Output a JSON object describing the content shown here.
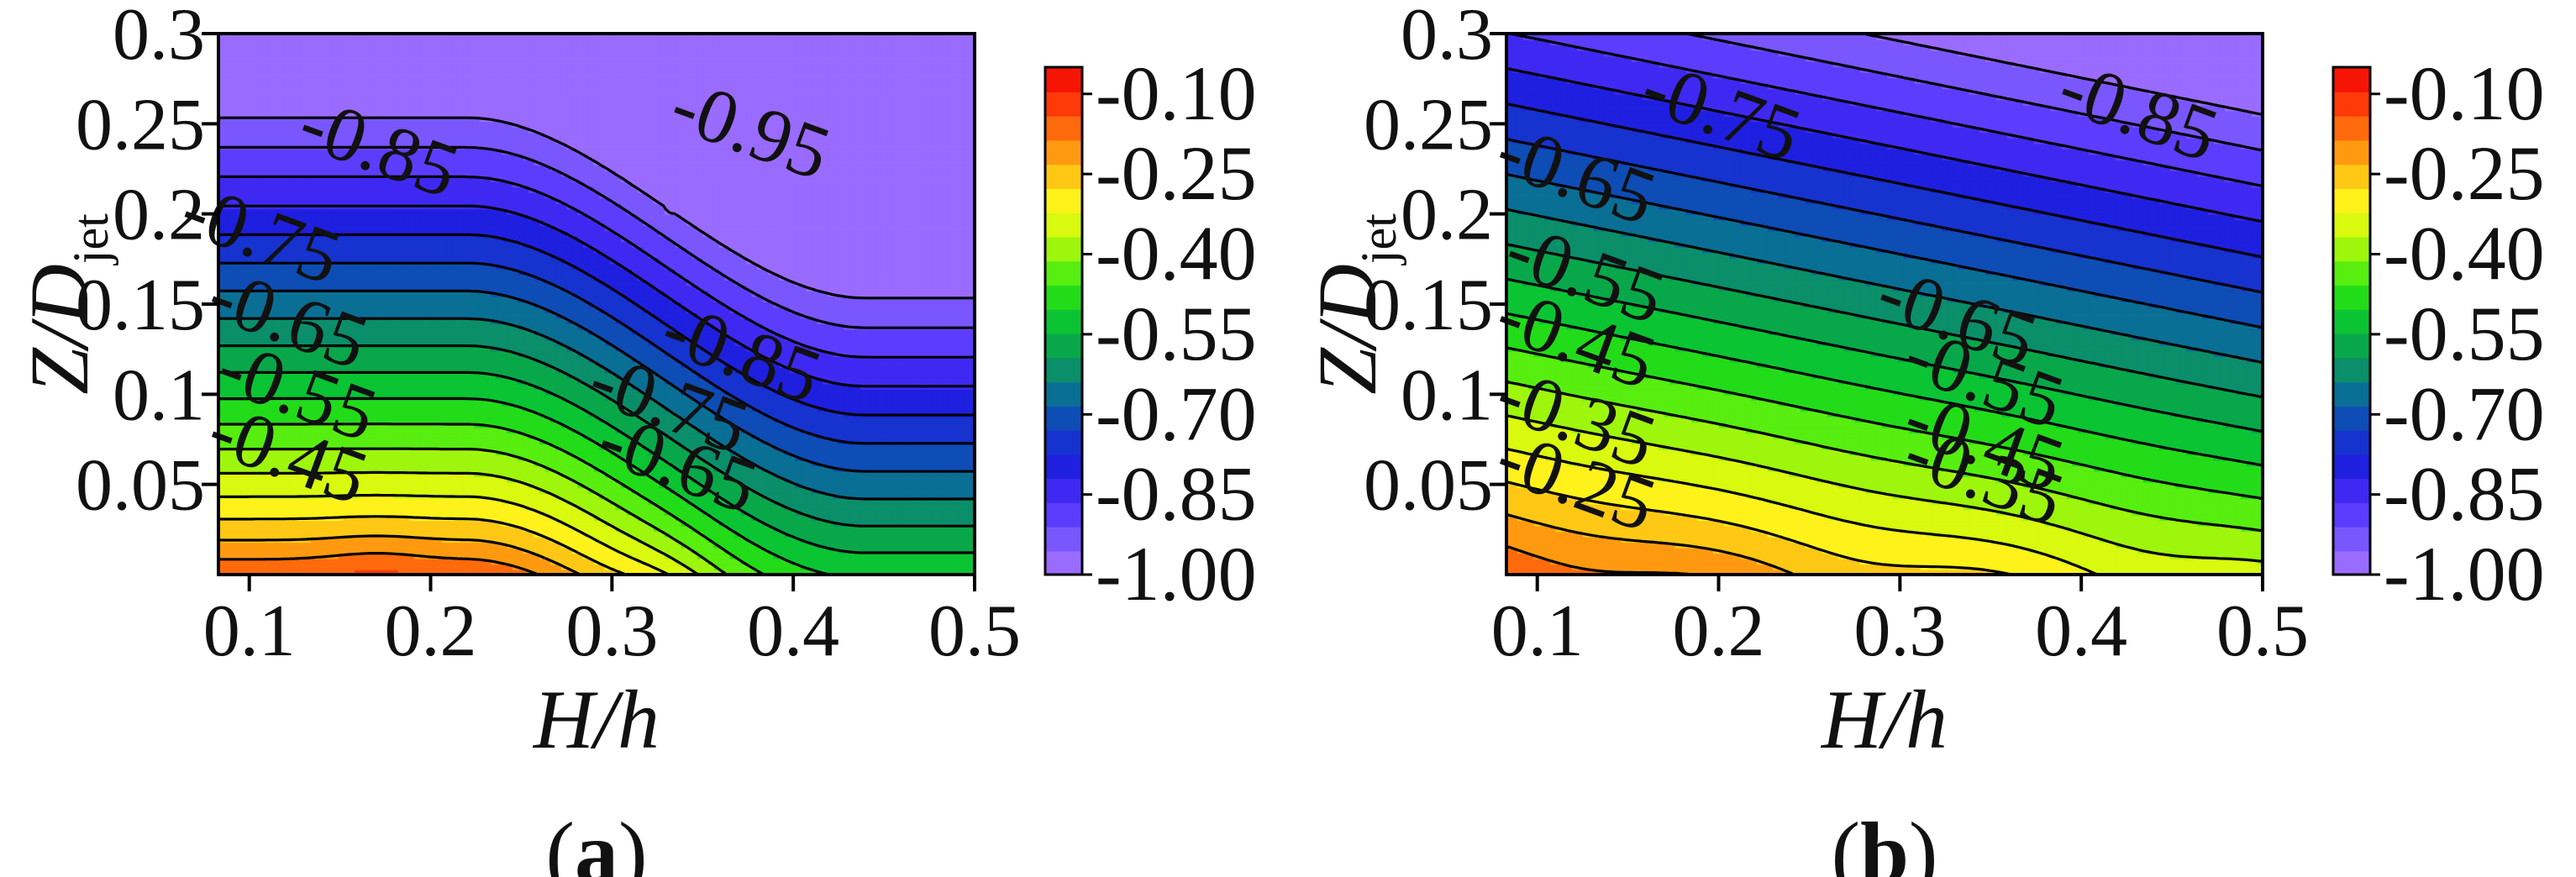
{
  "chart_data": [
    {
      "type": "contour",
      "panel": "a",
      "caption_letter": "a",
      "xlabel": "H/h",
      "ylabel": "Z/D",
      "ylabel_sub": "jet",
      "xlim": [
        0.083,
        0.5
      ],
      "ylim": [
        0.0,
        0.3
      ],
      "xticks": [
        "0.1",
        "0.2",
        "0.3",
        "0.4",
        "0.5"
      ],
      "yticks": [
        "0.05",
        "0.1",
        "0.15",
        "0.2",
        "0.25",
        "0.3"
      ],
      "levels": [
        -1.0,
        -0.95,
        -0.9,
        -0.85,
        -0.8,
        -0.75,
        -0.7,
        -0.65,
        -0.6,
        -0.55,
        -0.5,
        -0.45,
        -0.4,
        -0.35,
        -0.3,
        -0.25,
        -0.2,
        -0.15,
        -0.1,
        -0.05
      ],
      "colorbar_ticks": [
        "-0.10",
        "-0.25",
        "-0.40",
        "-0.55",
        "-0.70",
        "-0.85",
        "-1.00"
      ],
      "contour_labels": [
        "-0.85",
        "-0.95",
        "-0.75",
        "-0.65",
        "-0.55",
        "-0.45",
        "-0.85",
        "-0.75",
        "-0.65"
      ],
      "contour_label_positions": [
        {
          "x": 0.17,
          "y": 0.233
        },
        {
          "x": 0.375,
          "y": 0.243
        },
        {
          "x": 0.105,
          "y": 0.185
        },
        {
          "x": 0.12,
          "y": 0.138
        },
        {
          "x": 0.125,
          "y": 0.098
        },
        {
          "x": 0.12,
          "y": 0.063
        },
        {
          "x": 0.37,
          "y": 0.119
        },
        {
          "x": 0.33,
          "y": 0.091
        },
        {
          "x": 0.335,
          "y": 0.058
        }
      ],
      "description": "Pressure coefficient field; strongly negative (-1.0) at the top right, near -0.05 along the bottom edge; contours descend toward larger H/h."
    },
    {
      "type": "contour",
      "panel": "b",
      "caption_letter": "b",
      "xlabel": "H/h",
      "ylabel": "Z/D",
      "ylabel_sub": "jet",
      "xlim": [
        0.083,
        0.5
      ],
      "ylim": [
        0.0,
        0.3
      ],
      "xticks": [
        "0.1",
        "0.2",
        "0.3",
        "0.4",
        "0.5"
      ],
      "yticks": [
        "0.05",
        "0.1",
        "0.15",
        "0.2",
        "0.25",
        "0.3"
      ],
      "levels": [
        -1.0,
        -0.95,
        -0.9,
        -0.85,
        -0.8,
        -0.75,
        -0.7,
        -0.65,
        -0.6,
        -0.55,
        -0.5,
        -0.45,
        -0.4,
        -0.35,
        -0.3,
        -0.25,
        -0.2,
        -0.15,
        -0.1,
        -0.05
      ],
      "colorbar_ticks": [
        "-0.10",
        "-0.25",
        "-0.40",
        "-0.55",
        "-0.70",
        "-0.85",
        "-1.00"
      ],
      "contour_labels": [
        "-0.75",
        "-0.85",
        "-0.65",
        "-0.55",
        "-0.45",
        "-0.35",
        "-0.25",
        "-0.65",
        "-0.55",
        "-0.45",
        "-0.35"
      ],
      "contour_label_positions": [
        {
          "x": 0.2,
          "y": 0.253
        },
        {
          "x": 0.43,
          "y": 0.253
        },
        {
          "x": 0.12,
          "y": 0.218
        },
        {
          "x": 0.125,
          "y": 0.163
        },
        {
          "x": 0.12,
          "y": 0.127
        },
        {
          "x": 0.12,
          "y": 0.083
        },
        {
          "x": 0.12,
          "y": 0.048
        },
        {
          "x": 0.33,
          "y": 0.139
        },
        {
          "x": 0.345,
          "y": 0.105
        },
        {
          "x": 0.345,
          "y": 0.07
        },
        {
          "x": 0.345,
          "y": 0.051
        }
      ],
      "description": "Pressure coefficient field; -1.0 at the top right, about -0.05 near the floor; bands roughly parallel and sloping down to the right."
    }
  ],
  "colors": {
    "colormap": [
      "#9a6bff",
      "#7a56ff",
      "#5c3dff",
      "#3f29f2",
      "#1f1fe0",
      "#1633cf",
      "#0e4db6",
      "#0a6f95",
      "#0a8f6a",
      "#08a84a",
      "#0bc433",
      "#23dc19",
      "#57ee10",
      "#9ef60d",
      "#d9f90e",
      "#fff21a",
      "#ffc815",
      "#ff9a10",
      "#ff6a0c",
      "#ff3a08",
      "#f61405"
    ]
  }
}
